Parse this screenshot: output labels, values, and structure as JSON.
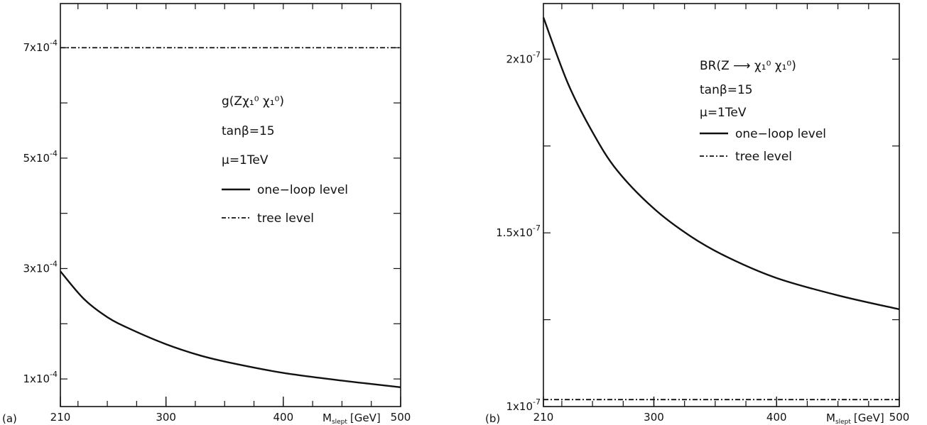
{
  "chart_data": [
    {
      "type": "line",
      "panel_label": "(a)",
      "xlabel": "M",
      "xlabel_sub": "slept",
      "xlabel_unit": "[GeV]",
      "xlim": [
        210,
        500
      ],
      "ylim": [
        5e-05,
        0.00078
      ],
      "x_ticks": [
        210,
        300,
        400,
        500
      ],
      "y_ticks": [
        {
          "value": 0.0001,
          "base": "1x10",
          "exp": "-4"
        },
        {
          "value": 0.0003,
          "base": "3x10",
          "exp": "-4"
        },
        {
          "value": 0.0005,
          "base": "5x10",
          "exp": "-4"
        },
        {
          "value": 0.0007,
          "base": "7x10",
          "exp": "-4"
        }
      ],
      "legend": {
        "title": "g(Zχ₁⁰ χ₁⁰)",
        "lines": [
          "tanβ=15",
          "μ=1TeV"
        ],
        "entries": [
          "one−loop level",
          "tree level"
        ]
      },
      "series": [
        {
          "name": "one−loop level",
          "style": "solid",
          "x": [
            210,
            230,
            250,
            270,
            300,
            330,
            360,
            400,
            450,
            500
          ],
          "y": [
            0.000295,
            0.000245,
            0.000212,
            0.00019,
            0.000163,
            0.000142,
            0.000127,
            0.000111,
            9.7e-05,
            8.5e-05
          ]
        },
        {
          "name": "tree level",
          "style": "dashdot",
          "x": [
            210,
            500
          ],
          "y": [
            0.0007,
            0.0007
          ]
        }
      ]
    },
    {
      "type": "line",
      "panel_label": "(b)",
      "xlabel": "M",
      "xlabel_sub": "slept",
      "xlabel_unit": "[GeV]",
      "xlim": [
        210,
        500
      ],
      "ylim": [
        1e-07,
        2.16e-07
      ],
      "x_ticks": [
        210,
        300,
        400,
        500
      ],
      "y_ticks": [
        {
          "value": 1e-07,
          "base": "1x10",
          "exp": "-7"
        },
        {
          "value": 1.5e-07,
          "base": "1.5x10",
          "exp": "-7"
        },
        {
          "value": 2e-07,
          "base": "2x10",
          "exp": "-7"
        }
      ],
      "legend": {
        "title": "BR(Z ⟶ χ₁⁰ χ₁⁰)",
        "lines": [
          "tanβ=15",
          "μ=1TeV"
        ],
        "entries": [
          "one−loop level",
          "tree level"
        ]
      },
      "series": [
        {
          "name": "one−loop level",
          "style": "solid",
          "x": [
            210,
            230,
            250,
            270,
            300,
            330,
            360,
            400,
            450,
            500
          ],
          "y": [
            2.12e-07,
            1.93e-07,
            1.79e-07,
            1.68e-07,
            1.57e-07,
            1.49e-07,
            1.43e-07,
            1.37e-07,
            1.32e-07,
            1.28e-07
          ]
        },
        {
          "name": "tree level",
          "style": "dashdot",
          "x": [
            210,
            500
          ],
          "y": [
            1.02e-07,
            1.02e-07
          ]
        }
      ]
    }
  ]
}
